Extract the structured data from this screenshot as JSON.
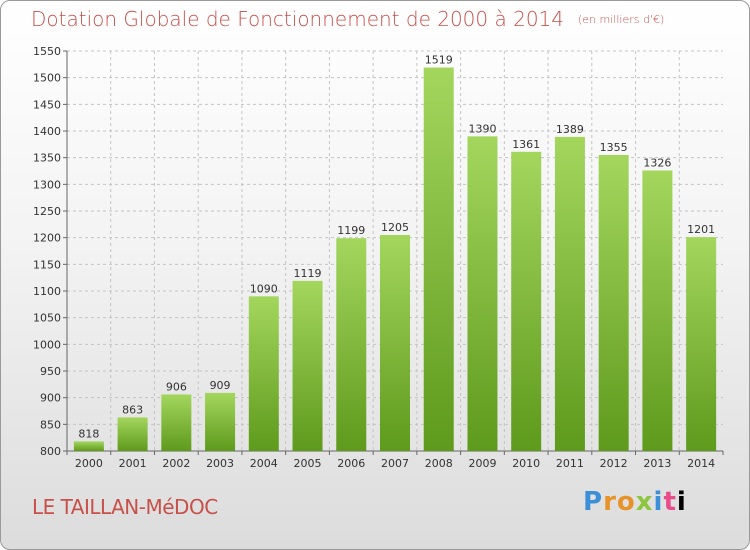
{
  "chart_data": {
    "type": "bar",
    "title": "Dotation Globale de Fonctionnement de 2000 à 2014",
    "subtitle": "(en milliers d'€)",
    "categories": [
      "2000",
      "2001",
      "2002",
      "2003",
      "2004",
      "2005",
      "2006",
      "2007",
      "2008",
      "2009",
      "2010",
      "2011",
      "2012",
      "2013",
      "2014"
    ],
    "values": [
      818,
      863,
      906,
      909,
      1090,
      1119,
      1199,
      1205,
      1519,
      1390,
      1361,
      1389,
      1355,
      1326,
      1201
    ],
    "ylim": [
      800,
      1550
    ],
    "yticks": [
      800,
      850,
      900,
      950,
      1000,
      1050,
      1100,
      1150,
      1200,
      1250,
      1300,
      1350,
      1400,
      1450,
      1500,
      1550
    ],
    "grid": true,
    "bar_color": "#7cb82f",
    "title_color": "#c8504a"
  },
  "footer": {
    "place": "LE TAILLAN-MéDOC",
    "brand_letters": [
      "P",
      "r",
      "o",
      "x",
      "i",
      "t",
      "i"
    ]
  }
}
